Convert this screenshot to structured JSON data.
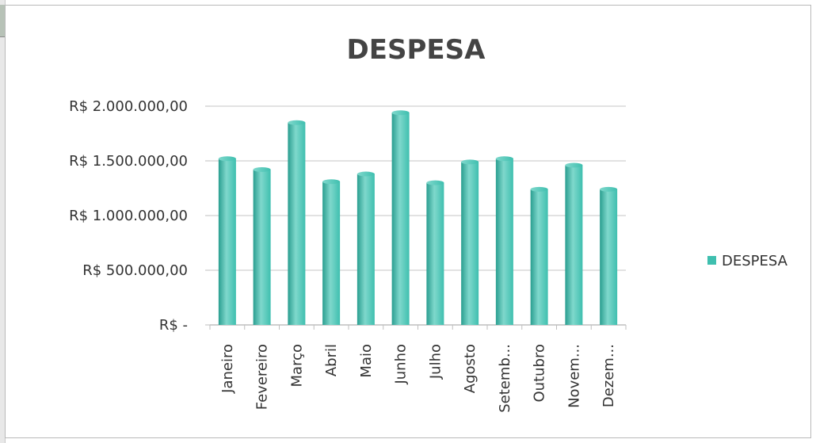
{
  "colors": {
    "bar_fill": "#3fbfaf",
    "bar_light": "#7fd8cc",
    "bar_dark": "#2a9e90",
    "gridline": "#d9d9d9",
    "axis": "#bfbfbf",
    "title": "#444444",
    "text": "#333333"
  },
  "chart_data": {
    "type": "bar",
    "title": "DESPESA",
    "categories": [
      "Janeiro",
      "Fevereiro",
      "Março",
      "Abril",
      "Maio",
      "Junho",
      "Julho",
      "Agosto",
      "Setemb...",
      "Outubro",
      "Novem...",
      "Dezem..."
    ],
    "series": [
      {
        "name": "DESPESA",
        "values": [
          1520000,
          1420000,
          1850000,
          1310000,
          1380000,
          1940000,
          1300000,
          1490000,
          1520000,
          1240000,
          1460000,
          1240000
        ]
      }
    ],
    "ylim": [
      0,
      2000000
    ],
    "yticks": [
      0,
      500000,
      1000000,
      1500000,
      2000000
    ],
    "ytick_labels": [
      "R$ -",
      "R$ 500.000,00",
      "R$ 1.000.000,00",
      "R$ 1.500.000,00",
      "R$ 2.000.000,00"
    ],
    "xlabel": "",
    "ylabel": "",
    "grid": true,
    "legend": "right"
  }
}
